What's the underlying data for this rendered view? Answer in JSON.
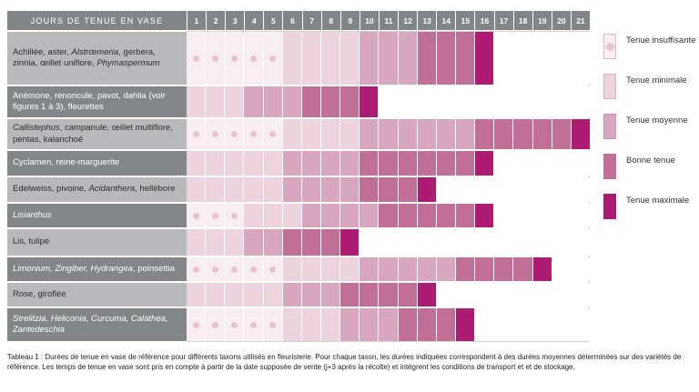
{
  "table": {
    "title": "JOURS DE TENUE EN VASE",
    "days": [
      1,
      2,
      3,
      4,
      5,
      6,
      7,
      8,
      9,
      10,
      11,
      12,
      13,
      14,
      15,
      16,
      17,
      18,
      19,
      20,
      21
    ],
    "rows": [
      {
        "shade": "light",
        "label": [
          {
            "text": "Achillée, aster, ",
            "italic": false
          },
          {
            "text": "Alstrœmeria",
            "italic": true
          },
          {
            "text": ", gerbera, zinnia, œillet uniflore, ",
            "italic": false
          },
          {
            "text": "Phymaspermum",
            "italic": true
          }
        ],
        "levels": [
          1,
          1,
          1,
          1,
          1,
          2,
          2,
          2,
          2,
          3,
          3,
          3,
          4,
          4,
          4,
          5,
          0,
          0,
          0,
          0,
          0
        ]
      },
      {
        "shade": "dark",
        "label": [
          {
            "text": "Anémone, renoncule, pavot, dahlia (voir figures 1 à 3), fleurettes",
            "italic": false
          }
        ],
        "levels": [
          2,
          2,
          2,
          3,
          3,
          3,
          4,
          4,
          4,
          5,
          0,
          0,
          0,
          0,
          0,
          0,
          0,
          0,
          0,
          0,
          0
        ]
      },
      {
        "shade": "light",
        "label": [
          {
            "text": "Callistephus",
            "italic": true
          },
          {
            "text": ", campanule, œillet multiflore, pentas, kalanchoé",
            "italic": false
          }
        ],
        "levels": [
          1,
          1,
          1,
          1,
          1,
          2,
          2,
          2,
          2,
          3,
          3,
          3,
          3,
          3,
          3,
          4,
          4,
          4,
          4,
          4,
          5
        ]
      },
      {
        "shade": "dark",
        "label": [
          {
            "text": "Cyclamen, reine-marguerite",
            "italic": false
          }
        ],
        "levels": [
          2,
          2,
          2,
          2,
          2,
          3,
          3,
          3,
          3,
          4,
          4,
          4,
          4,
          4,
          4,
          5,
          0,
          0,
          0,
          0,
          0
        ]
      },
      {
        "shade": "light",
        "label": [
          {
            "text": "Edelweiss, pivoine, ",
            "italic": false
          },
          {
            "text": "Acidanthera",
            "italic": true
          },
          {
            "text": ", hellébore",
            "italic": false
          }
        ],
        "levels": [
          2,
          2,
          2,
          2,
          2,
          3,
          3,
          3,
          3,
          4,
          4,
          4,
          5,
          0,
          0,
          0,
          0,
          0,
          0,
          0,
          0
        ]
      },
      {
        "shade": "dark",
        "label": [
          {
            "text": "Lisianthus",
            "italic": true
          }
        ],
        "levels": [
          1,
          1,
          1,
          2,
          2,
          2,
          3,
          3,
          3,
          3,
          4,
          4,
          4,
          4,
          4,
          5,
          0,
          0,
          0,
          0,
          0
        ]
      },
      {
        "shade": "light",
        "label": [
          {
            "text": "Lis, tulipe",
            "italic": false
          }
        ],
        "levels": [
          2,
          2,
          2,
          3,
          3,
          4,
          4,
          4,
          5,
          0,
          0,
          0,
          0,
          0,
          0,
          0,
          0,
          0,
          0,
          0,
          0
        ]
      },
      {
        "shade": "dark",
        "label": [
          {
            "text": "Limonium, Zingiber, Hydrangea",
            "italic": true
          },
          {
            "text": ", poinsettia",
            "italic": false
          }
        ],
        "levels": [
          1,
          1,
          1,
          1,
          1,
          2,
          2,
          2,
          2,
          3,
          3,
          3,
          3,
          3,
          4,
          4,
          4,
          4,
          5,
          0,
          0
        ]
      },
      {
        "shade": "light",
        "label": [
          {
            "text": "Rose, giroflée",
            "italic": false
          }
        ],
        "levels": [
          2,
          2,
          2,
          2,
          2,
          3,
          3,
          3,
          4,
          4,
          4,
          4,
          5,
          0,
          0,
          0,
          0,
          0,
          0,
          0,
          0
        ]
      },
      {
        "shade": "dark",
        "label": [
          {
            "text": "Strelitzia, Heliconia, Curcuma, Calathea, Zantedeschia",
            "italic": true
          }
        ],
        "levels": [
          1,
          1,
          1,
          1,
          1,
          2,
          2,
          2,
          3,
          3,
          3,
          4,
          4,
          4,
          5,
          0,
          0,
          0,
          0,
          0,
          0
        ]
      }
    ]
  },
  "levels": {
    "0": {
      "color": "#ffffff"
    },
    "1": {
      "name": "Tenue insuffisante",
      "color": "#f8eef2",
      "dot": "#e5c3d1",
      "border": "#e0b4c7"
    },
    "2": {
      "name": "Tenue minimale",
      "color": "#edd3dd",
      "border": "#dbb3c5"
    },
    "3": {
      "name": "Tenue moyenne",
      "color": "#d9a6bf",
      "border": "#cb93af"
    },
    "4": {
      "name": "Bonne tenue",
      "color": "#c26f98",
      "border": "#c26f98"
    },
    "5": {
      "name": "Tenue maximale",
      "color": "#ae1b72",
      "border": "#ae1b72"
    }
  },
  "legend": {
    "items": [
      {
        "label": "Tenue insuffisante",
        "level": 1
      },
      {
        "label": "Tenue minimale",
        "level": 2
      },
      {
        "label": "Tenue moyenne",
        "level": 3
      },
      {
        "label": "Bonne tenue",
        "level": 4
      },
      {
        "label": "Tenue maximale",
        "level": 5
      }
    ]
  },
  "caption": "Tableau 1 : Durées de tenue en vase de référence pour différents taxons utilisés en fleuristerie. Pour chaque taxon, les durées indiquées correspondent à des durées moyennes déterminées sur des variétés de référence. Les temps de tenue en vase sont pris en compte à partir de la date supposée de vente (j+3 après la récolte) et intègrent les conditions de transport et et de stockage.",
  "chart_data": {
    "type": "heatmap",
    "title": "JOURS DE TENUE EN VASE",
    "x": [
      1,
      2,
      3,
      4,
      5,
      6,
      7,
      8,
      9,
      10,
      11,
      12,
      13,
      14,
      15,
      16,
      17,
      18,
      19,
      20,
      21
    ],
    "xlabel": "Jours de tenue en vase",
    "legend_position": "right",
    "value_scale": [
      "Tenue insuffisante",
      "Tenue minimale",
      "Tenue moyenne",
      "Bonne tenue",
      "Tenue maximale"
    ],
    "series": [
      {
        "name": "Achillée, aster, Alstrœmeria, gerbera, zinnia, œillet uniflore, Phymaspermum",
        "ranges": {
          "Tenue insuffisante": [
            1,
            5
          ],
          "Tenue minimale": [
            6,
            9
          ],
          "Tenue moyenne": [
            10,
            12
          ],
          "Bonne tenue": [
            13,
            15
          ],
          "Tenue maximale": [
            16,
            16
          ]
        }
      },
      {
        "name": "Anémone, renoncule, pavot, dahlia (voir figures 1 à 3), fleurettes",
        "ranges": {
          "Tenue minimale": [
            1,
            3
          ],
          "Tenue moyenne": [
            4,
            6
          ],
          "Bonne tenue": [
            7,
            9
          ],
          "Tenue maximale": [
            10,
            10
          ]
        }
      },
      {
        "name": "Callistephus, campanule, œillet multiflore, pentas, kalanchoé",
        "ranges": {
          "Tenue insuffisante": [
            1,
            5
          ],
          "Tenue minimale": [
            6,
            9
          ],
          "Tenue moyenne": [
            10,
            15
          ],
          "Bonne tenue": [
            16,
            20
          ],
          "Tenue maximale": [
            21,
            21
          ]
        }
      },
      {
        "name": "Cyclamen, reine-marguerite",
        "ranges": {
          "Tenue minimale": [
            1,
            5
          ],
          "Tenue moyenne": [
            6,
            9
          ],
          "Bonne tenue": [
            10,
            15
          ],
          "Tenue maximale": [
            16,
            16
          ]
        }
      },
      {
        "name": "Edelweiss, pivoine, Acidanthera, hellébore",
        "ranges": {
          "Tenue minimale": [
            1,
            5
          ],
          "Tenue moyenne": [
            6,
            9
          ],
          "Bonne tenue": [
            10,
            12
          ],
          "Tenue maximale": [
            13,
            13
          ]
        }
      },
      {
        "name": "Lisianthus",
        "ranges": {
          "Tenue insuffisante": [
            1,
            3
          ],
          "Tenue minimale": [
            4,
            6
          ],
          "Tenue moyenne": [
            7,
            10
          ],
          "Bonne tenue": [
            11,
            15
          ],
          "Tenue maximale": [
            16,
            16
          ]
        }
      },
      {
        "name": "Lis, tulipe",
        "ranges": {
          "Tenue minimale": [
            1,
            3
          ],
          "Tenue moyenne": [
            4,
            5
          ],
          "Bonne tenue": [
            6,
            8
          ],
          "Tenue maximale": [
            9,
            9
          ]
        }
      },
      {
        "name": "Limonium, Zingiber, Hydrangea, poinsettia",
        "ranges": {
          "Tenue insuffisante": [
            1,
            5
          ],
          "Tenue minimale": [
            6,
            9
          ],
          "Tenue moyenne": [
            10,
            14
          ],
          "Bonne tenue": [
            15,
            18
          ],
          "Tenue maximale": [
            19,
            19
          ]
        }
      },
      {
        "name": "Rose, giroflée",
        "ranges": {
          "Tenue minimale": [
            1,
            5
          ],
          "Tenue moyenne": [
            6,
            8
          ],
          "Bonne tenue": [
            9,
            12
          ],
          "Tenue maximale": [
            13,
            13
          ]
        }
      },
      {
        "name": "Strelitzia, Heliconia, Curcuma, Calathea, Zantedeschia",
        "ranges": {
          "Tenue insuffisante": [
            1,
            5
          ],
          "Tenue minimale": [
            6,
            8
          ],
          "Tenue moyenne": [
            9,
            11
          ],
          "Bonne tenue": [
            12,
            14
          ],
          "Tenue maximale": [
            15,
            15
          ]
        }
      }
    ]
  }
}
